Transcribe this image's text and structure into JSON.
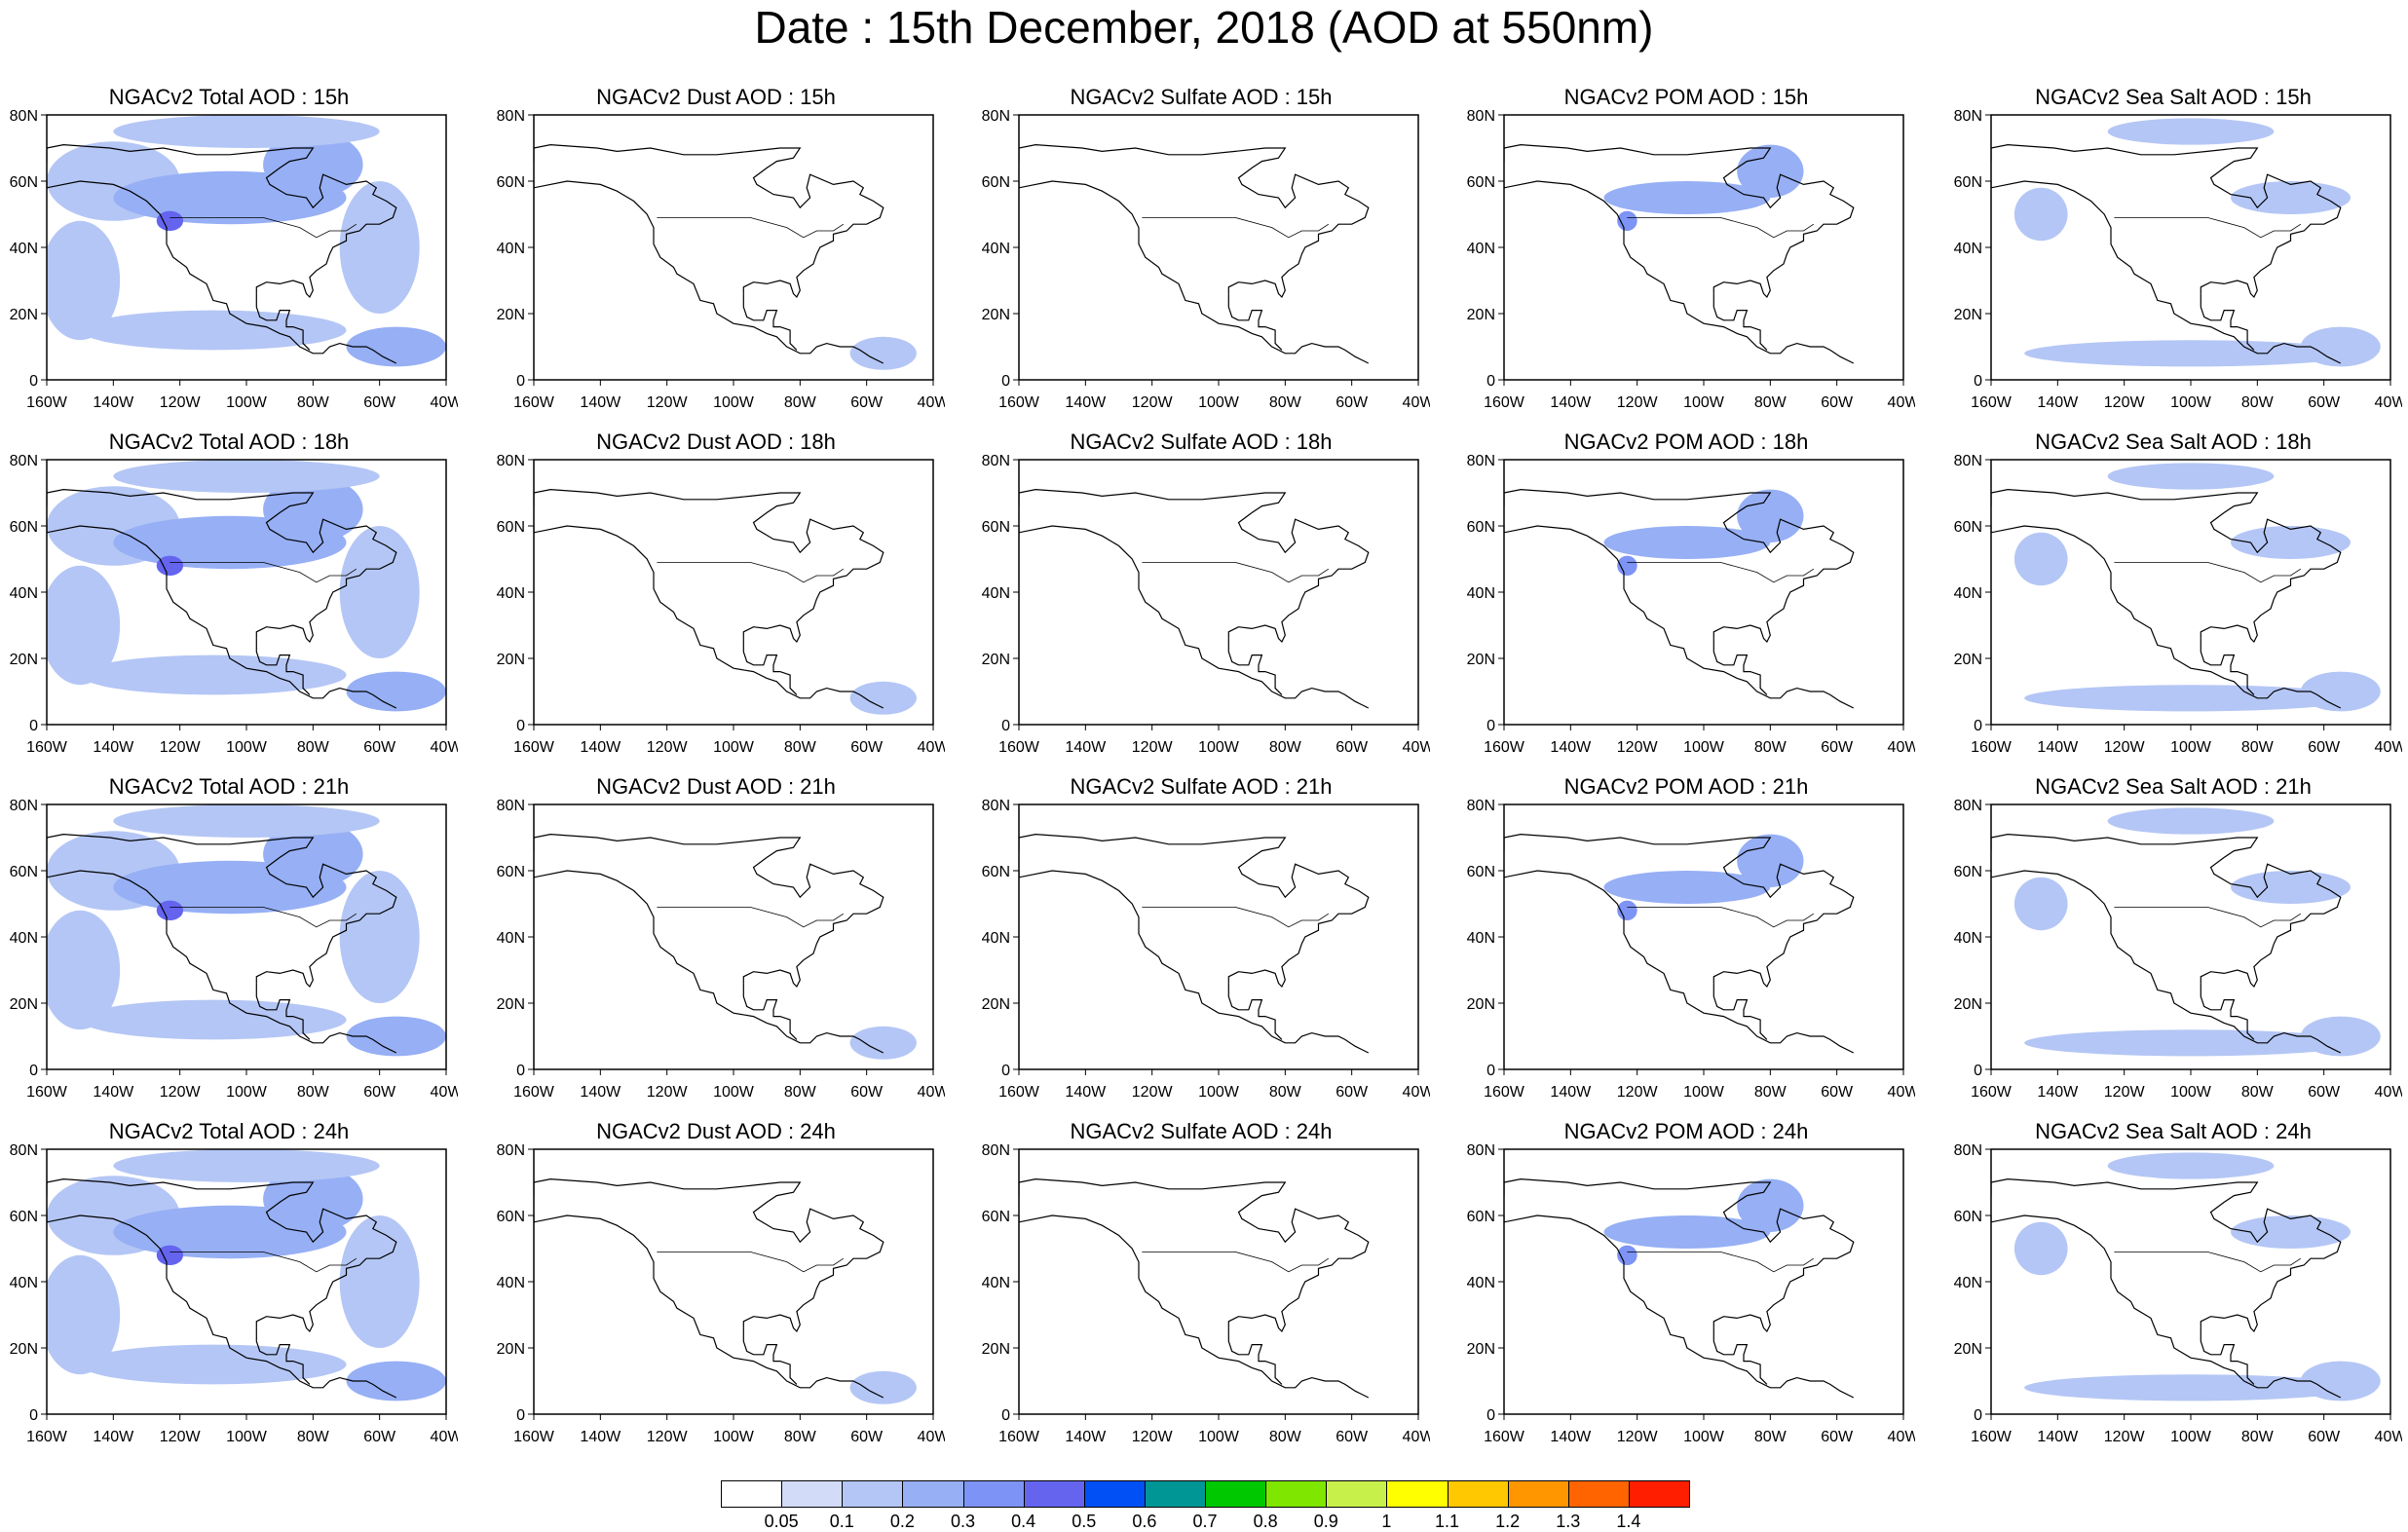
{
  "title": "Date : 15th December, 2018 (AOD at 550nm)",
  "map_axes": {
    "lon_range": [
      -160,
      -40
    ],
    "lat_range": [
      0,
      80
    ],
    "x_ticks": [
      "160W",
      "140W",
      "120W",
      "100W",
      "80W",
      "60W",
      "40W"
    ],
    "y_ticks": [
      "0",
      "20N",
      "40N",
      "60N",
      "80N"
    ]
  },
  "columns": [
    {
      "species": "total",
      "title_prefix": "NGACv2 Total AOD"
    },
    {
      "species": "dust",
      "title_prefix": "NGACv2 Dust AOD"
    },
    {
      "species": "sulfate",
      "title_prefix": "NGACv2 Sulfate AOD"
    },
    {
      "species": "pom",
      "title_prefix": "NGACv2 POM AOD"
    },
    {
      "species": "seasalt",
      "title_prefix": "NGACv2 Sea Salt AOD"
    }
  ],
  "rows": [
    {
      "hour": "15h"
    },
    {
      "hour": "18h"
    },
    {
      "hour": "21h"
    },
    {
      "hour": "24h"
    }
  ],
  "panels": [
    [
      "NGACv2 Total AOD : 15h",
      "NGACv2 Dust AOD : 15h",
      "NGACv2 Sulfate AOD : 15h",
      "NGACv2 POM AOD : 15h",
      "NGACv2 Sea Salt AOD : 15h"
    ],
    [
      "NGACv2 Total AOD : 18h",
      "NGACv2 Dust AOD : 18h",
      "NGACv2 Sulfate AOD : 18h",
      "NGACv2 POM AOD : 18h",
      "NGACv2 Sea Salt AOD : 18h"
    ],
    [
      "NGACv2 Total AOD : 21h",
      "NGACv2 Dust AOD : 21h",
      "NGACv2 Sulfate AOD : 21h",
      "NGACv2 POM AOD : 21h",
      "NGACv2 Sea Salt AOD : 21h"
    ],
    [
      "NGACv2 Total AOD : 24h",
      "NGACv2 Dust AOD : 24h",
      "NGACv2 Sulfate AOD : 24h",
      "NGACv2 POM AOD : 24h",
      "NGACv2 Sea Salt  AOD : 24h"
    ]
  ],
  "colorbar": {
    "labels": [
      "0.05",
      "0.1",
      "0.2",
      "0.3",
      "0.4",
      "0.5",
      "0.6",
      "0.7",
      "0.8",
      "0.9",
      "1",
      "1.1",
      "1.2",
      "1.3",
      "1.4"
    ],
    "colors": [
      "#ffffff",
      "#d2dcf8",
      "#b4c6f5",
      "#96aff5",
      "#7d93f5",
      "#6464ef",
      "#0050f5",
      "#009696",
      "#00c800",
      "#7fe600",
      "#c8f04b",
      "#ffff00",
      "#ffc800",
      "#ff9600",
      "#ff6400",
      "#ff1e00"
    ]
  },
  "aod_fields": {
    "total": [
      {
        "lon": -140,
        "lat": 60,
        "rx": 20,
        "ry": 12,
        "aod": 0.1
      },
      {
        "lon": -105,
        "lat": 55,
        "rx": 35,
        "ry": 8,
        "aod": 0.2
      },
      {
        "lon": -80,
        "lat": 65,
        "rx": 15,
        "ry": 10,
        "aod": 0.2
      },
      {
        "lon": -123,
        "lat": 48,
        "rx": 4,
        "ry": 3,
        "aod": 0.4
      },
      {
        "lon": -150,
        "lat": 30,
        "rx": 12,
        "ry": 18,
        "aod": 0.1
      },
      {
        "lon": -110,
        "lat": 15,
        "rx": 40,
        "ry": 6,
        "aod": 0.1
      },
      {
        "lon": -55,
        "lat": 10,
        "rx": 15,
        "ry": 6,
        "aod": 0.2
      },
      {
        "lon": -60,
        "lat": 40,
        "rx": 12,
        "ry": 20,
        "aod": 0.1
      },
      {
        "lon": -100,
        "lat": 75,
        "rx": 40,
        "ry": 5,
        "aod": 0.1
      }
    ],
    "dust": [
      {
        "lon": -55,
        "lat": 8,
        "rx": 10,
        "ry": 5,
        "aod": 0.1
      }
    ],
    "sulfate": [],
    "pom": [
      {
        "lon": -105,
        "lat": 55,
        "rx": 25,
        "ry": 5,
        "aod": 0.2
      },
      {
        "lon": -80,
        "lat": 63,
        "rx": 10,
        "ry": 8,
        "aod": 0.2
      },
      {
        "lon": -123,
        "lat": 48,
        "rx": 3,
        "ry": 3,
        "aod": 0.3
      }
    ],
    "seasalt": [
      {
        "lon": -145,
        "lat": 50,
        "rx": 8,
        "ry": 8,
        "aod": 0.1
      },
      {
        "lon": -70,
        "lat": 55,
        "rx": 18,
        "ry": 5,
        "aod": 0.1
      },
      {
        "lon": -100,
        "lat": 75,
        "rx": 25,
        "ry": 4,
        "aod": 0.1
      },
      {
        "lon": -100,
        "lat": 8,
        "rx": 50,
        "ry": 4,
        "aod": 0.1
      },
      {
        "lon": -55,
        "lat": 10,
        "rx": 12,
        "ry": 6,
        "aod": 0.1
      }
    ]
  }
}
